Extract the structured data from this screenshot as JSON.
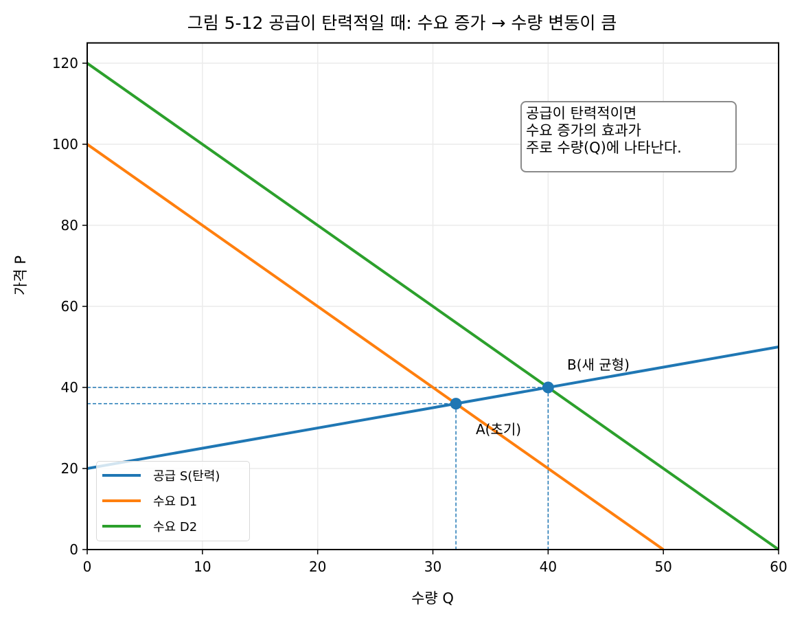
{
  "chart_data": {
    "type": "line",
    "title": "그림 5-12  공급이 탄력적일 때: 수요 증가 → 수량 변동이 큼",
    "xlabel": "수량 Q",
    "ylabel": "가격 P",
    "xlim": [
      0,
      60
    ],
    "ylim": [
      0,
      125
    ],
    "xticks": [
      0,
      10,
      20,
      30,
      40,
      50,
      60
    ],
    "yticks": [
      0,
      20,
      40,
      60,
      80,
      100,
      120
    ],
    "grid": true,
    "legend_position": "lower left",
    "series": [
      {
        "name": "공급 S(탄력)",
        "color": "#1f77b4",
        "x": [
          0,
          60
        ],
        "y": [
          20,
          50
        ]
      },
      {
        "name": "수요 D1",
        "color": "#ff7f0e",
        "x": [
          0,
          50
        ],
        "y": [
          100,
          0
        ]
      },
      {
        "name": "수요 D2",
        "color": "#2ca02c",
        "x": [
          0,
          60
        ],
        "y": [
          120,
          0
        ]
      }
    ],
    "points": [
      {
        "label": "A(초기)",
        "x": 32,
        "y": 36,
        "color": "#1f77b4"
      },
      {
        "label": "B(새 균형)",
        "x": 40,
        "y": 40,
        "color": "#1f77b4"
      }
    ],
    "annotation_box": "공급이 탄력적이면\n수요 증가의 효과가\n주로 수량(Q)에 나타난다."
  },
  "labels": {
    "title": "그림 5-12  공급이 탄력적일 때: 수요 증가 → 수량 변동이 큼",
    "xlabel": "수량 Q",
    "ylabel": "가격 P",
    "note": "공급이 탄력적이면\n수요 증가의 효과가\n주로 수량(Q)에 나타난다.",
    "point_a": "A(초기)",
    "point_b": "B(새 균형)",
    "legend": [
      "공급 S(탄력)",
      "수요 D1",
      "수요 D2"
    ]
  }
}
